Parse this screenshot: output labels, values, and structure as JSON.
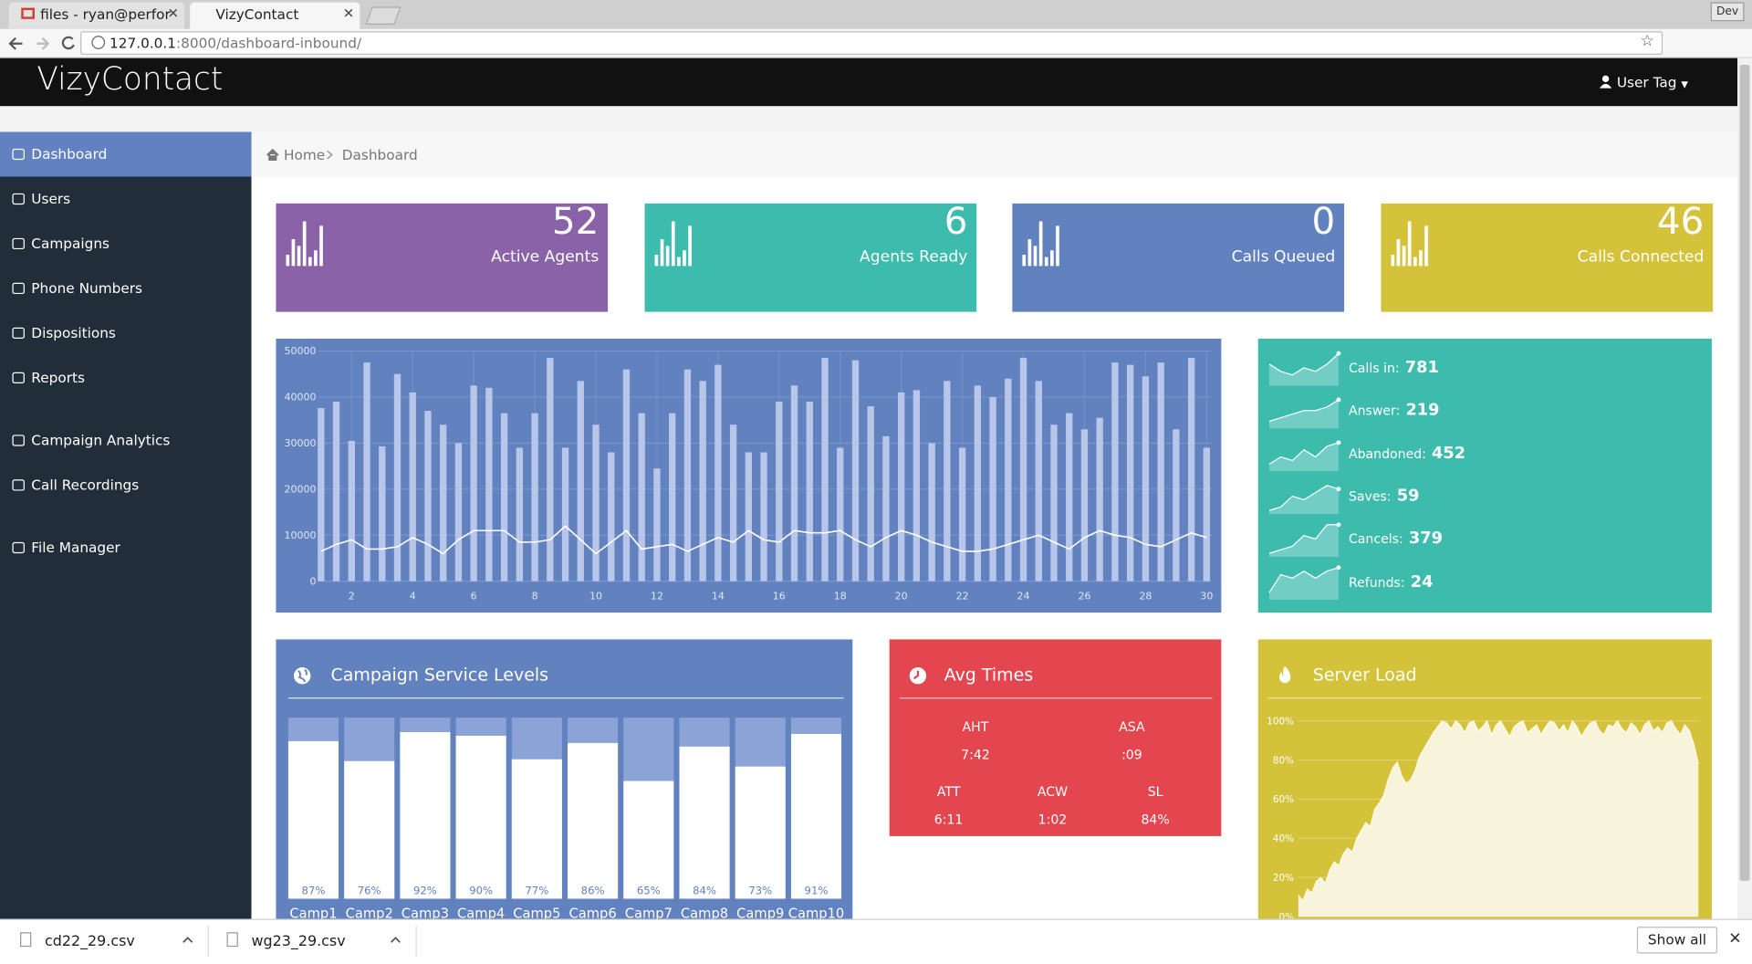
{
  "browser": {
    "tabs": [
      "files - ryan@perfor",
      "VizyContact"
    ],
    "url_host": "127.0.0.1",
    "url_path": ":8000/dashboard-inbound/",
    "profile": "Dev"
  },
  "navbar": {
    "brand": "VizyContact",
    "user": "User Tag"
  },
  "sidebar": {
    "items": [
      "Dashboard",
      "Users",
      "Campaigns",
      "Phone Numbers",
      "Dispositions",
      "Reports",
      "Campaign Analytics",
      "Call Recordings",
      "File Manager"
    ]
  },
  "breadcrumb": [
    "Home",
    "Dashboard"
  ],
  "tiles": [
    {
      "value": 52,
      "label": "Active Agents",
      "color": "#8a62a8"
    },
    {
      "value": 6,
      "label": "Agents Ready",
      "color": "#3dbbad"
    },
    {
      "value": 0,
      "label": "Calls Queued",
      "color": "#6181bf"
    },
    {
      "value": 46,
      "label": "Calls Connected",
      "color": "#d4c23b"
    }
  ],
  "traffic_chart": {
    "type": "bar",
    "x": [
      1,
      1.5,
      2,
      2.5,
      3,
      3.5,
      4,
      4.5,
      5,
      5.5,
      6,
      6.5,
      7,
      7.5,
      8,
      8.5,
      9,
      9.5,
      10,
      10.5,
      11,
      11.5,
      12,
      12.5,
      13,
      13.5,
      14,
      14.5,
      15,
      15.5,
      16,
      16.5,
      17,
      17.5,
      18,
      18.5,
      19,
      19.5,
      20,
      20.5,
      21,
      21.5,
      22,
      22.5,
      23,
      23.5,
      24,
      24.5,
      25,
      25.5,
      26,
      26.5,
      27,
      27.5,
      28,
      28.5,
      29,
      29.5,
      30
    ],
    "series": [
      {
        "type": "bar",
        "color": "#b8c6ea",
        "values": [
          37600,
          39000,
          30500,
          47500,
          29300,
          45000,
          41000,
          37000,
          34000,
          30000,
          42500,
          42000,
          36500,
          29000,
          36500,
          48500,
          29000,
          43500,
          34000,
          28000,
          46000,
          36500,
          24500,
          36500,
          46000,
          43500,
          47000,
          34000,
          28000,
          28000,
          39000,
          42500,
          39000,
          48500,
          29000,
          48000,
          38000,
          31500,
          41000,
          41500,
          30000,
          43500,
          29000,
          42500,
          40000,
          44000,
          48500,
          43500,
          34000,
          36500,
          33000,
          35500,
          47500,
          47000,
          44500,
          47500,
          33000,
          48500,
          29000
        ]
      },
      {
        "type": "line",
        "color": "#ffffff",
        "values": [
          6500,
          8000,
          9000,
          7000,
          7000,
          7500,
          9500,
          8000,
          6000,
          9000,
          11000,
          11000,
          11000,
          8500,
          8500,
          9000,
          12000,
          9000,
          6000,
          8500,
          11000,
          7000,
          7500,
          8000,
          6500,
          8000,
          9500,
          8500,
          11000,
          9000,
          8500,
          11000,
          10500,
          10500,
          11000,
          9000,
          7500,
          9500,
          11000,
          10000,
          8500,
          7500,
          6500,
          6500,
          7000,
          8000,
          9000,
          10000,
          8500,
          7000,
          9500,
          11000,
          10000,
          9500,
          8000,
          7500,
          9000,
          10500,
          9500
        ]
      }
    ],
    "xlim": [
      0,
      30.5
    ],
    "ylim": [
      0,
      50000
    ],
    "xticks": [
      2,
      4,
      6,
      8,
      10,
      12,
      14,
      16,
      18,
      20,
      22,
      24,
      26,
      28,
      30
    ],
    "yticks": [
      0,
      10000,
      20000,
      30000,
      40000,
      50000
    ],
    "grid": true
  },
  "call_stats": [
    {
      "label": "Calls in:",
      "value": 781,
      "trend": [
        6,
        4,
        3,
        5,
        4,
        6,
        9
      ]
    },
    {
      "label": "Answer:",
      "value": 219,
      "trend": [
        2,
        3,
        4,
        5,
        5,
        6,
        8
      ]
    },
    {
      "label": "Abandoned:",
      "value": 452,
      "trend": [
        2,
        4,
        3,
        6,
        4,
        7,
        8
      ]
    },
    {
      "label": "Saves:",
      "value": 59,
      "trend": [
        1,
        2,
        5,
        4,
        6,
        8,
        7
      ]
    },
    {
      "label": "Cancels:",
      "value": 379,
      "trend": [
        1,
        2,
        3,
        6,
        5,
        9,
        9
      ]
    },
    {
      "label": "Refunds:",
      "value": 24,
      "trend": [
        2,
        7,
        6,
        8,
        6,
        8,
        9
      ]
    }
  ],
  "trend_ylim": [
    0,
    10
  ],
  "service_levels": {
    "type": "bar",
    "title": "Campaign Service Levels",
    "categories": [
      "Camp1",
      "Camp2",
      "Camp3",
      "Camp4",
      "Camp5",
      "Camp6",
      "Camp7",
      "Camp8",
      "Camp9",
      "Camp10"
    ],
    "values": [
      87,
      76,
      92,
      90,
      77,
      86,
      65,
      84,
      73,
      91
    ],
    "value_labels": [
      "87%",
      "76%",
      "92%",
      "90%",
      "77%",
      "86%",
      "65%",
      "84%",
      "73%",
      "91%"
    ],
    "ylim": [
      0,
      100
    ],
    "color": "#ffffff"
  },
  "avg_times": {
    "title": "Avg Times",
    "items": [
      {
        "label": "AHT",
        "value": "7:42"
      },
      {
        "label": "ASA",
        "value": ":09"
      },
      {
        "label": "ATT",
        "value": "6:11"
      },
      {
        "label": "ACW",
        "value": "1:02"
      },
      {
        "label": "SL",
        "value": "84%"
      }
    ]
  },
  "server_load": {
    "type": "area",
    "title": "Server Load",
    "color": "#f8f4dc",
    "ylim": [
      0,
      100
    ],
    "yticks": [
      {
        "value": 0,
        "label": "0%"
      },
      {
        "value": 20,
        "label": "20%"
      },
      {
        "value": 40,
        "label": "40%"
      },
      {
        "value": 60,
        "label": "60%"
      },
      {
        "value": 80,
        "label": "80%"
      },
      {
        "value": 100,
        "label": "100%"
      }
    ],
    "values": [
      11,
      8,
      14,
      12,
      18,
      20,
      17,
      24,
      28,
      26,
      32,
      35,
      33,
      40,
      44,
      48,
      46,
      55,
      58,
      62,
      70,
      76,
      79,
      72,
      68,
      70,
      75,
      82,
      86,
      90,
      94,
      97,
      100,
      99,
      96,
      100,
      98,
      94,
      99,
      100,
      95,
      97,
      100,
      93,
      98,
      100,
      96,
      92,
      97,
      99,
      100,
      94,
      96,
      98,
      93,
      97,
      100,
      99,
      95,
      98,
      94,
      100,
      97,
      92,
      96,
      99,
      100,
      95,
      93,
      98,
      97,
      100,
      96,
      94,
      99,
      97,
      93,
      98,
      100,
      95,
      97,
      94,
      99,
      100,
      96,
      93,
      98,
      95,
      88,
      78
    ]
  },
  "downloads": [
    "cd22_29.csv",
    "wg23_29.csv"
  ],
  "show_all": "Show all"
}
